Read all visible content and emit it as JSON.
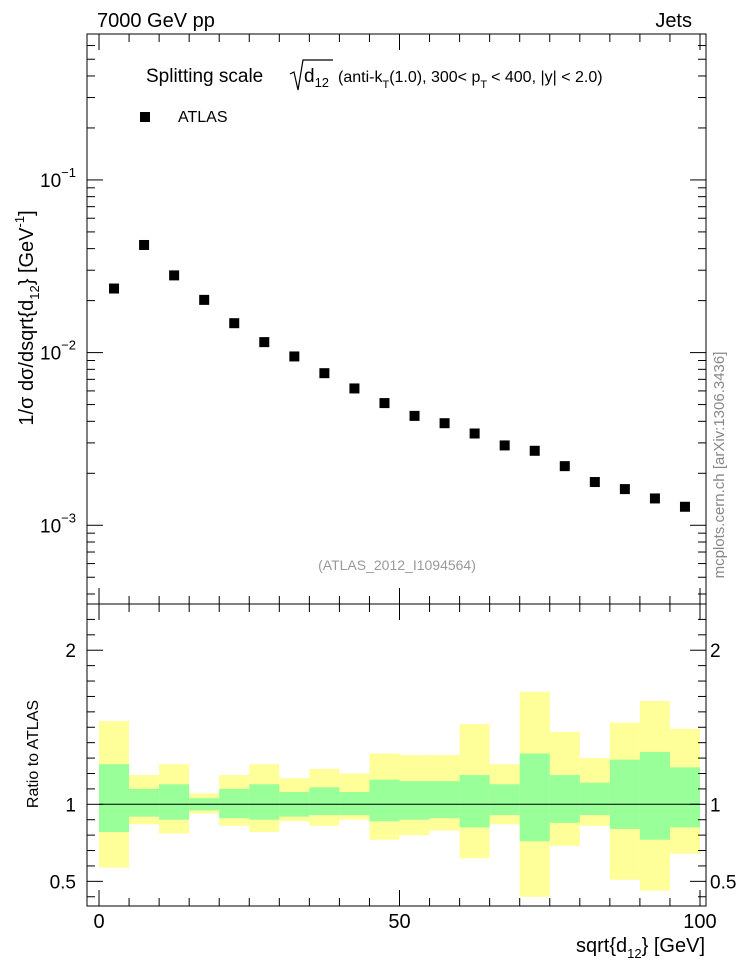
{
  "header": {
    "left": "7000 GeV pp",
    "right": "Jets"
  },
  "side_label": "mcplots.cern.ch [arXiv:1306.3436]",
  "watermark": "(ATLAS_2012_I1094564)",
  "chart_data": [
    {
      "type": "scatter",
      "name": "main",
      "title_prefix": "Splitting scale",
      "title_symbol": "d",
      "title_symbol_sub": "12",
      "title_suffix": "(anti-k",
      "title_suffix_sub": "T",
      "title_suffix2": "(1.0), 300< p",
      "title_suffix2_sub": "T",
      "title_suffix3": "< 400, |y| < 2.0)",
      "ylabel": "1/σ dσ/dsqrt{d",
      "ylabel_sub": "12",
      "ylabel_end": "} [GeV",
      "ylabel_sup": "-1",
      "ylabel_close": "]",
      "yscale": "log",
      "ylim": [
        0.00035,
        0.7
      ],
      "xlim": [
        -2,
        101
      ],
      "y_ticks": [
        {
          "value": 0.1,
          "base": "10",
          "exp": "−1"
        },
        {
          "value": 0.01,
          "base": "10",
          "exp": "−2"
        },
        {
          "value": 0.001,
          "base": "10",
          "exp": "−3"
        }
      ],
      "legend": [
        {
          "label": "ATLAS",
          "marker": "square",
          "color": "#000000"
        }
      ],
      "x": [
        2.5,
        7.5,
        12.5,
        17.5,
        22.5,
        27.5,
        32.5,
        37.5,
        42.5,
        47.5,
        52.5,
        57.5,
        62.5,
        67.5,
        72.5,
        77.5,
        82.5,
        87.5,
        92.5,
        97.5
      ],
      "values": [
        0.0235,
        0.042,
        0.028,
        0.0202,
        0.0148,
        0.0115,
        0.0095,
        0.0076,
        0.0062,
        0.0051,
        0.0043,
        0.0039,
        0.0034,
        0.0029,
        0.0027,
        0.0022,
        0.00178,
        0.00162,
        0.00143,
        0.00128
      ]
    },
    {
      "type": "area",
      "name": "ratio",
      "ylabel": "Ratio to ATLAS",
      "xlabel": "sqrt{d",
      "xlabel_sub": "12",
      "xlabel_end": "} [GeV]",
      "ylim": [
        0.34,
        2.3
      ],
      "xlim": [
        -2,
        101
      ],
      "y_ticks": [
        0.5,
        1,
        2
      ],
      "y_tick_labels": [
        "0.5",
        "1",
        "2"
      ],
      "x_ticks": [
        0,
        50,
        100
      ],
      "x_tick_labels": [
        "0",
        "50",
        "100"
      ],
      "bin_edges": [
        0,
        5,
        10,
        15,
        20,
        25,
        30,
        35,
        40,
        45,
        50,
        55,
        60,
        65,
        70,
        75,
        80,
        85,
        90,
        95,
        100
      ],
      "green_lo": [
        0.82,
        0.92,
        0.9,
        0.96,
        0.91,
        0.9,
        0.92,
        0.93,
        0.93,
        0.89,
        0.9,
        0.91,
        0.85,
        0.93,
        0.76,
        0.88,
        0.93,
        0.84,
        0.77,
        0.85
      ],
      "green_hi": [
        1.26,
        1.1,
        1.13,
        1.04,
        1.1,
        1.13,
        1.08,
        1.11,
        1.08,
        1.16,
        1.15,
        1.15,
        1.19,
        1.13,
        1.33,
        1.19,
        1.14,
        1.29,
        1.34,
        1.24
      ],
      "yellow_lo": [
        0.59,
        0.87,
        0.81,
        0.94,
        0.86,
        0.82,
        0.89,
        0.86,
        0.9,
        0.77,
        0.8,
        0.83,
        0.65,
        0.87,
        0.4,
        0.73,
        0.86,
        0.51,
        0.44,
        0.68
      ],
      "yellow_hi": [
        1.54,
        1.19,
        1.26,
        1.07,
        1.19,
        1.26,
        1.17,
        1.23,
        1.2,
        1.33,
        1.32,
        1.32,
        1.52,
        1.26,
        1.73,
        1.47,
        1.3,
        1.53,
        1.67,
        1.49
      ],
      "band_colors": {
        "inner": "#99ff99",
        "outer": "#ffff99"
      },
      "reference_line": 1
    }
  ]
}
